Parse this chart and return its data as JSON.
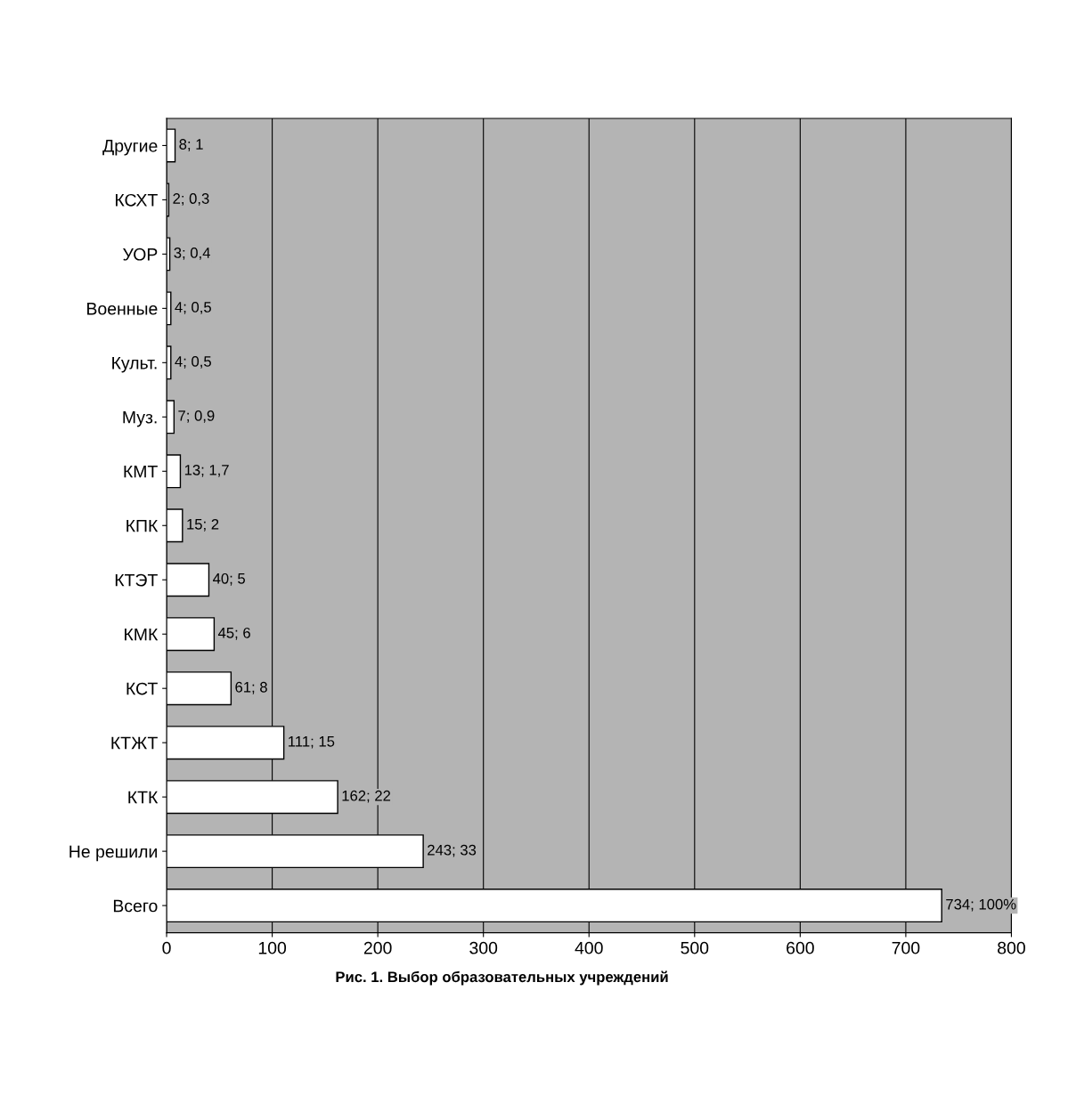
{
  "chart_data": {
    "type": "bar",
    "orientation": "horizontal",
    "title": "Рис. 1. Выбор образовательных учреждений",
    "categories": [
      "Другие",
      "КСХТ",
      "УОР",
      "Военные",
      "Культ.",
      "Муз.",
      "КМТ",
      "КПК",
      "КТЭТ",
      "КМК",
      "КСТ",
      "КТЖТ",
      "КТК",
      "Не решили",
      "Всего"
    ],
    "values": [
      8,
      2,
      3,
      4,
      4,
      7,
      13,
      15,
      40,
      45,
      61,
      111,
      162,
      243,
      734
    ],
    "value_labels": [
      "8; 1",
      "2; 0,3",
      "3; 0,4",
      "4; 0,5",
      "4; 0,5",
      "7; 0,9",
      "13; 1,7",
      "15; 2",
      "40; 5",
      "45; 6",
      "61; 8",
      "111; 15",
      "162; 22",
      "243; 33",
      "734; 100%"
    ],
    "color": "#ffffff",
    "xlim": [
      0,
      800
    ],
    "xticks": [
      0,
      100,
      200,
      300,
      400,
      500,
      600,
      700,
      800
    ],
    "grid": "x",
    "legend": false
  }
}
